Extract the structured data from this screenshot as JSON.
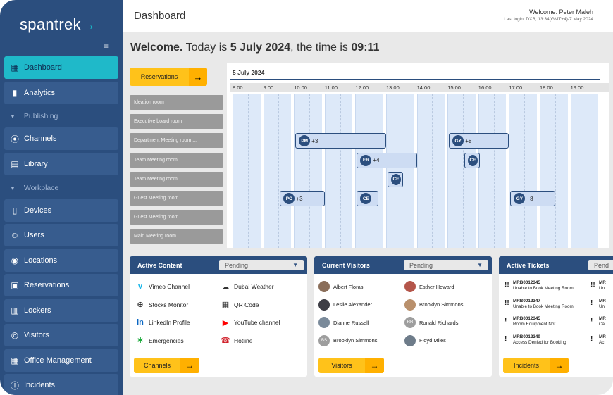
{
  "app": {
    "logo": "spantrek",
    "logo_arrow": "→"
  },
  "sidebar": {
    "items": [
      {
        "label": "Dashboard",
        "icon": "dashboard-icon",
        "glyph": "▦",
        "active": true
      },
      {
        "label": "Analytics",
        "icon": "analytics-icon",
        "glyph": "▮"
      },
      {
        "label": "Publishing",
        "section": true
      },
      {
        "label": "Channels",
        "icon": "broadcast-icon",
        "glyph": "⦿"
      },
      {
        "label": "Library",
        "icon": "library-icon",
        "glyph": "▤"
      },
      {
        "label": "Workplace",
        "section": true
      },
      {
        "label": "Devices",
        "icon": "devices-icon",
        "glyph": "▯"
      },
      {
        "label": "Users",
        "icon": "users-icon",
        "glyph": "☺"
      },
      {
        "label": "Locations",
        "icon": "location-icon",
        "glyph": "◉"
      },
      {
        "label": "Reservations",
        "icon": "calendar-icon",
        "glyph": "▣"
      },
      {
        "label": "Lockers",
        "icon": "locker-icon",
        "glyph": "▥"
      },
      {
        "label": "Visitors",
        "icon": "visitor-icon",
        "glyph": "◎"
      },
      {
        "label": "Office Management",
        "icon": "office-icon",
        "glyph": "▦"
      },
      {
        "label": "Incidents",
        "icon": "incident-icon",
        "glyph": "ⓘ"
      }
    ]
  },
  "header": {
    "title": "Dashboard",
    "welcome_user": "Welcome: Peter Maleh",
    "last_login": "Last login: DXB, 13:34(GMT+4)-7 May 2024"
  },
  "welcome": {
    "prefix": "Welcome.",
    "today_text": "Today is",
    "date": "5 July 2024",
    "time_text": ", the time is",
    "time": "09:11"
  },
  "reservations_button": "Reservations",
  "calendar": {
    "date": "5 July 2024",
    "hours": [
      "8:00",
      "9:00",
      "10:00",
      "11:00",
      "12:00",
      "13:00",
      "14:00",
      "15:00",
      "16:00",
      "17:00",
      "18:00",
      "19:00"
    ],
    "rooms": [
      "Ideation room",
      "Executive board room",
      "Department Meeting room ...",
      "Team Meeting room",
      "Team Meeting room",
      "Guest Meeting room",
      "Guest Meeting room",
      "Main Meeting room"
    ],
    "bookings": [
      {
        "initials": "PM",
        "extra": "+3",
        "row": 2,
        "start": 10.0,
        "end": 13.0
      },
      {
        "initials": "GY",
        "extra": "+8",
        "row": 2,
        "start": 15.0,
        "end": 17.0
      },
      {
        "initials": "ER",
        "extra": "+4",
        "row": 3,
        "start": 12.0,
        "end": 14.0
      },
      {
        "initials": "CE",
        "extra": "",
        "row": 3,
        "start": 15.5,
        "end": 16.0
      },
      {
        "initials": "CE",
        "extra": "",
        "row": 4,
        "start": 13.0,
        "end": 13.5
      },
      {
        "initials": "PO",
        "extra": "+3",
        "row": 5,
        "start": 9.5,
        "end": 11.0
      },
      {
        "initials": "CE",
        "extra": "",
        "row": 5,
        "start": 12.0,
        "end": 12.75
      },
      {
        "initials": "GY",
        "extra": "+8",
        "row": 5,
        "start": 17.0,
        "end": 18.5
      }
    ]
  },
  "active_content": {
    "title": "Active Content",
    "filter": "Pending",
    "items": [
      {
        "label": "Vimeo Channel",
        "icon": "vimeo-icon",
        "glyph": "v",
        "color": "#1ab7ea"
      },
      {
        "label": "Dubai Weather",
        "icon": "weather-icon",
        "glyph": "☁",
        "color": "#333333"
      },
      {
        "label": "Stocks Monitor",
        "icon": "globe-icon",
        "glyph": "⊕",
        "color": "#333333"
      },
      {
        "label": "QR Code",
        "icon": "qr-code-icon",
        "glyph": "▦",
        "color": "#333333"
      },
      {
        "label": "LinkedIn Profile",
        "icon": "linkedin-icon",
        "glyph": "in",
        "color": "#0a66c2"
      },
      {
        "label": "YouTube channel",
        "icon": "youtube-icon",
        "glyph": "▶",
        "color": "#ff0000"
      },
      {
        "label": "Emergencies",
        "icon": "emergency-icon",
        "glyph": "✱",
        "color": "#1aaa3a"
      },
      {
        "label": "Hotline",
        "icon": "phone-icon",
        "glyph": "☎",
        "color": "#d0202a"
      }
    ],
    "button": "Channels"
  },
  "current_visitors": {
    "title": "Current Visitors",
    "filter": "Pending",
    "items": [
      {
        "name": "Albert Floras",
        "photo": "#8a6e5a"
      },
      {
        "name": "Esther Howard",
        "photo": "#b4554a"
      },
      {
        "name": "Leslie Alexander",
        "photo": "#3e3e46"
      },
      {
        "name": "Brooklyn Simmons",
        "photo": "#b9906c"
      },
      {
        "name": "Dianne Russell",
        "photo": "#7a8a9a"
      },
      {
        "name": "Ronald Richards",
        "initials": "RR",
        "photo": "#9e9e9e"
      },
      {
        "name": "Brooklyn Simmons",
        "initials": "BS",
        "photo": "#9e9e9e"
      },
      {
        "name": "Floyd Miles",
        "photo": "#6e7c8a"
      }
    ],
    "button": "Visitors"
  },
  "active_tickets": {
    "title": "Active Tickets",
    "filter": "Pend",
    "items": [
      {
        "priority": "!!",
        "id": "MRB0012345",
        "desc": "Unable to Book Meeting Room"
      },
      {
        "priority": "!!",
        "id": "MR",
        "desc": "Un"
      },
      {
        "priority": "!!",
        "id": "MRB0012347",
        "desc": "Unable to Book Meeting Room"
      },
      {
        "priority": "!",
        "id": "MR",
        "desc": "Un"
      },
      {
        "priority": "!",
        "id": "MRB0012345",
        "desc": "Room Equipment Not..."
      },
      {
        "priority": "!",
        "id": "MR",
        "desc": "Ca"
      },
      {
        "priority": "!",
        "id": "MRB0012349",
        "desc": "Access Denied for Booking"
      },
      {
        "priority": "!",
        "id": "MR",
        "desc": "Ac"
      }
    ],
    "button": "Incidents"
  }
}
